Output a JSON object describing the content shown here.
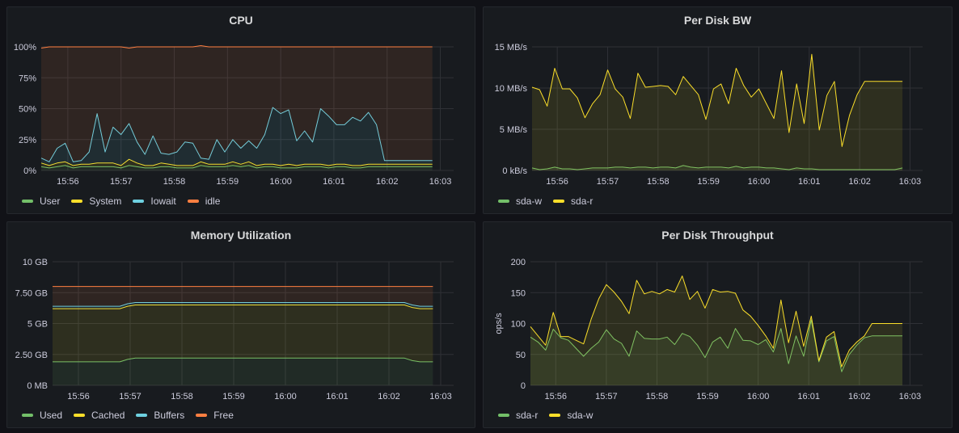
{
  "colors": {
    "green": "#73bf69",
    "yellow": "#fade2a",
    "blue": "#8ab8ff",
    "cyan": "#6ed0e0",
    "orange": "#ff7f41",
    "bg": "#181b1f",
    "grid": "#2f3136"
  },
  "panels": [
    {
      "id": "cpu",
      "title": "CPU",
      "legend": [
        {
          "name": "User",
          "color": "#73bf69"
        },
        {
          "name": "System",
          "color": "#fade2a"
        },
        {
          "name": "Iowait",
          "color": "#6ed0e0"
        },
        {
          "name": "idle",
          "color": "#ff7f41"
        }
      ]
    },
    {
      "id": "disk-bw",
      "title": "Per Disk BW",
      "legend": [
        {
          "name": "sda-w",
          "color": "#73bf69"
        },
        {
          "name": "sda-r",
          "color": "#fade2a"
        }
      ]
    },
    {
      "id": "memory",
      "title": "Memory Utilization",
      "legend": [
        {
          "name": "Used",
          "color": "#73bf69"
        },
        {
          "name": "Cached",
          "color": "#fade2a"
        },
        {
          "name": "Buffers",
          "color": "#6ed0e0"
        },
        {
          "name": "Free",
          "color": "#ff7f41"
        }
      ]
    },
    {
      "id": "disk-throughput",
      "title": "Per Disk Throughput",
      "legend": [
        {
          "name": "sda-r",
          "color": "#73bf69"
        },
        {
          "name": "sda-w",
          "color": "#fade2a"
        }
      ]
    }
  ],
  "chart_data": [
    {
      "type": "area",
      "title": "CPU",
      "x_ticks": [
        "15:56",
        "15:57",
        "15:58",
        "15:59",
        "16:00",
        "16:01",
        "16:02",
        "16:03"
      ],
      "x_range": [
        0,
        7.75
      ],
      "xs": [
        0.0,
        0.15,
        0.3,
        0.45,
        0.6,
        0.75,
        0.9,
        1.05,
        1.2,
        1.35,
        1.5,
        1.65,
        1.8,
        1.95,
        2.1,
        2.25,
        2.4,
        2.55,
        2.7,
        2.85,
        3.0,
        3.15,
        3.3,
        3.45,
        3.6,
        3.75,
        3.9,
        4.05,
        4.2,
        4.35,
        4.5,
        4.65,
        4.8,
        4.95,
        5.1,
        5.25,
        5.4,
        5.55,
        5.7,
        5.85,
        6.0,
        6.15,
        6.3,
        6.45,
        6.6,
        6.75,
        6.9,
        7.05,
        7.2,
        7.35
      ],
      "y_ticks": [
        "0%",
        "25%",
        "50%",
        "75%",
        "100%"
      ],
      "ylim": [
        0,
        100
      ],
      "stacked": true,
      "grid": true,
      "legend_position": "bottom",
      "series": [
        {
          "name": "User",
          "color": "#73bf69",
          "values": [
            3,
            2,
            3,
            4,
            2,
            3,
            3,
            3,
            3,
            3,
            2,
            4,
            3,
            2,
            2,
            3,
            3,
            2,
            2,
            2,
            4,
            3,
            3,
            3,
            4,
            3,
            4,
            2,
            3,
            3,
            2,
            2,
            2,
            3,
            3,
            3,
            2,
            3,
            3,
            2,
            2,
            3,
            3,
            3,
            3,
            3,
            3,
            3,
            3,
            3
          ]
        },
        {
          "name": "System",
          "color": "#fade2a",
          "values": [
            3,
            2,
            3,
            3,
            2,
            2,
            2,
            3,
            3,
            3,
            2,
            5,
            3,
            2,
            2,
            3,
            2,
            2,
            2,
            2,
            3,
            2,
            2,
            2,
            3,
            2,
            3,
            2,
            2,
            2,
            2,
            3,
            2,
            2,
            2,
            2,
            2,
            2,
            2,
            2,
            2,
            2,
            2,
            2,
            2,
            2,
            2,
            2,
            2,
            2
          ]
        },
        {
          "name": "Iowait",
          "color": "#6ed0e0",
          "values": [
            4,
            3,
            12,
            15,
            3,
            3,
            10,
            40,
            9,
            29,
            25,
            29,
            17,
            9,
            24,
            8,
            8,
            11,
            19,
            18,
            3,
            4,
            20,
            10,
            18,
            13,
            17,
            14,
            24,
            46,
            42,
            44,
            20,
            27,
            18,
            45,
            40,
            32,
            32,
            39,
            36,
            42,
            32,
            3,
            3,
            3,
            3,
            3,
            3,
            3
          ]
        },
        {
          "name": "idle",
          "color": "#ff7f41",
          "values": [
            89,
            93,
            82,
            78,
            93,
            92,
            85,
            54,
            85,
            65,
            71,
            61,
            77,
            87,
            72,
            86,
            87,
            85,
            77,
            78,
            91,
            91,
            75,
            85,
            75,
            82,
            76,
            82,
            71,
            49,
            54,
            51,
            76,
            68,
            77,
            50,
            56,
            63,
            63,
            57,
            60,
            53,
            63,
            92,
            92,
            92,
            92,
            92,
            92,
            92
          ]
        }
      ]
    },
    {
      "type": "area",
      "title": "Per Disk BW",
      "x_ticks": [
        "15:56",
        "15:57",
        "15:58",
        "15:59",
        "16:00",
        "16:01",
        "16:02",
        "16:03"
      ],
      "x_range": [
        0,
        7.75
      ],
      "xs": [
        0.0,
        0.15,
        0.3,
        0.45,
        0.6,
        0.75,
        0.9,
        1.05,
        1.2,
        1.35,
        1.5,
        1.65,
        1.8,
        1.95,
        2.1,
        2.25,
        2.4,
        2.55,
        2.7,
        2.85,
        3.0,
        3.15,
        3.3,
        3.45,
        3.6,
        3.75,
        3.9,
        4.05,
        4.2,
        4.35,
        4.5,
        4.65,
        4.8,
        4.95,
        5.1,
        5.25,
        5.4,
        5.55,
        5.7,
        5.85,
        6.0,
        6.15,
        6.3,
        6.45,
        6.6,
        6.75,
        6.9,
        7.05,
        7.2,
        7.35
      ],
      "y_ticks": [
        "0 kB/s",
        "5 MB/s",
        "10 MB/s",
        "15 MB/s"
      ],
      "ylim": [
        0,
        15
      ],
      "y_unit": "MB/s",
      "stacked": false,
      "grid": true,
      "legend_position": "bottom",
      "series": [
        {
          "name": "sda-w",
          "color": "#73bf69",
          "values": [
            0.3,
            0.1,
            0.2,
            0.4,
            0.2,
            0.2,
            0.1,
            0.2,
            0.3,
            0.3,
            0.3,
            0.4,
            0.4,
            0.3,
            0.4,
            0.4,
            0.3,
            0.4,
            0.4,
            0.3,
            0.6,
            0.4,
            0.3,
            0.4,
            0.4,
            0.4,
            0.3,
            0.5,
            0.3,
            0.4,
            0.4,
            0.3,
            0.3,
            0.2,
            0.1,
            0.3,
            0.2,
            0.2,
            0.1,
            0.1,
            0.1,
            0.1,
            0.1,
            0.1,
            0.1,
            0.1,
            0.1,
            0.1,
            0.1,
            0.3
          ]
        },
        {
          "name": "sda-r",
          "color": "#fade2a",
          "values": [
            10.1,
            9.8,
            7.8,
            12.4,
            9.9,
            9.9,
            8.8,
            6.4,
            8.1,
            9.2,
            12.2,
            9.9,
            8.9,
            6.3,
            11.8,
            10.1,
            10.2,
            10.3,
            10.2,
            9.2,
            11.4,
            10.3,
            9.2,
            6.2,
            9.9,
            10.5,
            8.1,
            12.4,
            10.3,
            8.9,
            9.9,
            8.1,
            6.3,
            12.1,
            4.6,
            10.5,
            5.7,
            14.1,
            4.9,
            9.1,
            10.8,
            2.9,
            6.7,
            9.2,
            10.8,
            10.8,
            10.8,
            10.8,
            10.8,
            10.8
          ]
        }
      ]
    },
    {
      "type": "area",
      "title": "Memory Utilization",
      "x_ticks": [
        "15:56",
        "15:57",
        "15:58",
        "15:59",
        "16:00",
        "16:01",
        "16:02",
        "16:03"
      ],
      "x_range": [
        0,
        7.75
      ],
      "xs": [
        0.0,
        0.5,
        1.0,
        1.3,
        1.45,
        1.6,
        2.0,
        3.0,
        4.0,
        5.0,
        6.0,
        6.8,
        6.95,
        7.1,
        7.35
      ],
      "y_ticks": [
        "0 MB",
        "2.50 GB",
        "5 GB",
        "7.50 GB",
        "10 GB"
      ],
      "ylim": [
        0,
        10
      ],
      "y_unit": "GB",
      "stacked": true,
      "grid": true,
      "legend_position": "bottom",
      "series": [
        {
          "name": "Used",
          "color": "#73bf69",
          "values": [
            1.9,
            1.9,
            1.9,
            1.9,
            2.1,
            2.2,
            2.2,
            2.2,
            2.2,
            2.2,
            2.2,
            2.2,
            2.0,
            1.9,
            1.9
          ]
        },
        {
          "name": "Cached",
          "color": "#fade2a",
          "values": [
            4.3,
            4.3,
            4.3,
            4.3,
            4.3,
            4.3,
            4.3,
            4.3,
            4.3,
            4.3,
            4.3,
            4.3,
            4.3,
            4.3,
            4.3
          ]
        },
        {
          "name": "Buffers",
          "color": "#6ed0e0",
          "values": [
            0.2,
            0.2,
            0.2,
            0.2,
            0.2,
            0.2,
            0.2,
            0.2,
            0.2,
            0.2,
            0.2,
            0.2,
            0.2,
            0.2,
            0.2
          ]
        },
        {
          "name": "Free",
          "color": "#ff7f41",
          "values": [
            1.6,
            1.6,
            1.6,
            1.6,
            1.4,
            1.3,
            1.3,
            1.3,
            1.3,
            1.3,
            1.3,
            1.3,
            1.5,
            1.6,
            1.6
          ]
        }
      ]
    },
    {
      "type": "area",
      "title": "Per Disk Throughput",
      "ylabel": "ops/s",
      "x_ticks": [
        "15:56",
        "15:57",
        "15:58",
        "15:59",
        "16:00",
        "16:01",
        "16:02",
        "16:03"
      ],
      "x_range": [
        0,
        7.75
      ],
      "xs": [
        0.0,
        0.15,
        0.3,
        0.45,
        0.6,
        0.75,
        0.9,
        1.05,
        1.2,
        1.35,
        1.5,
        1.65,
        1.8,
        1.95,
        2.1,
        2.25,
        2.4,
        2.55,
        2.7,
        2.85,
        3.0,
        3.15,
        3.3,
        3.45,
        3.6,
        3.75,
        3.9,
        4.05,
        4.2,
        4.35,
        4.5,
        4.65,
        4.8,
        4.95,
        5.1,
        5.25,
        5.4,
        5.55,
        5.7,
        5.85,
        6.0,
        6.15,
        6.3,
        6.45,
        6.6,
        6.75,
        6.9,
        7.05,
        7.2,
        7.35
      ],
      "y_ticks": [
        "0",
        "50",
        "100",
        "150",
        "200"
      ],
      "ylim": [
        0,
        200
      ],
      "stacked": false,
      "grid": true,
      "legend_position": "bottom",
      "series": [
        {
          "name": "sda-r",
          "color": "#73bf69",
          "values": [
            78,
            70,
            57,
            91,
            77,
            73,
            60,
            47,
            60,
            70,
            90,
            75,
            68,
            47,
            88,
            76,
            75,
            75,
            78,
            66,
            84,
            79,
            65,
            45,
            70,
            78,
            60,
            92,
            73,
            72,
            66,
            74,
            54,
            92,
            35,
            80,
            47,
            106,
            38,
            72,
            79,
            22,
            50,
            65,
            77,
            80,
            80,
            80,
            80,
            80
          ]
        },
        {
          "name": "sda-w",
          "color": "#fade2a",
          "values": [
            95,
            80,
            65,
            118,
            79,
            79,
            73,
            67,
            107,
            140,
            163,
            151,
            136,
            116,
            170,
            148,
            152,
            148,
            155,
            151,
            177,
            139,
            152,
            125,
            155,
            151,
            152,
            149,
            122,
            112,
            97,
            80,
            60,
            138,
            69,
            120,
            63,
            112,
            40,
            78,
            87,
            30,
            57,
            70,
            80,
            100,
            100,
            100,
            100,
            100
          ]
        }
      ]
    }
  ]
}
